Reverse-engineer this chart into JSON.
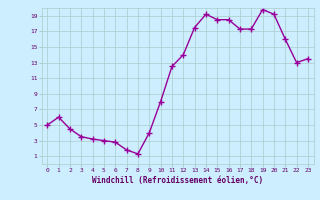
{
  "xlabel": "Windchill (Refroidissement éolien,°C)",
  "hours": [
    0,
    1,
    2,
    3,
    4,
    5,
    6,
    7,
    8,
    9,
    10,
    11,
    12,
    13,
    14,
    15,
    16,
    17,
    18,
    19,
    20,
    21,
    22,
    23
  ],
  "values": [
    5.0,
    6.0,
    4.5,
    3.5,
    3.2,
    3.0,
    2.8,
    1.8,
    1.3,
    4.0,
    8.0,
    12.5,
    14.0,
    17.5,
    19.2,
    18.5,
    18.5,
    17.3,
    17.3,
    19.8,
    19.2,
    16.0,
    13.0,
    13.5
  ],
  "ylim": [
    0,
    20
  ],
  "yticks": [
    1,
    3,
    5,
    7,
    9,
    11,
    13,
    15,
    17,
    19
  ],
  "xticks": [
    0,
    1,
    2,
    3,
    4,
    5,
    6,
    7,
    8,
    9,
    10,
    11,
    12,
    13,
    14,
    15,
    16,
    17,
    18,
    19,
    20,
    21,
    22,
    23
  ],
  "line_color": "#990099",
  "marker": "+",
  "marker_size": 4,
  "bg_color": "#cceeff",
  "grid_color": "#aacccc",
  "tick_label_color": "#660066",
  "label_color": "#660066",
  "line_width": 1.0
}
